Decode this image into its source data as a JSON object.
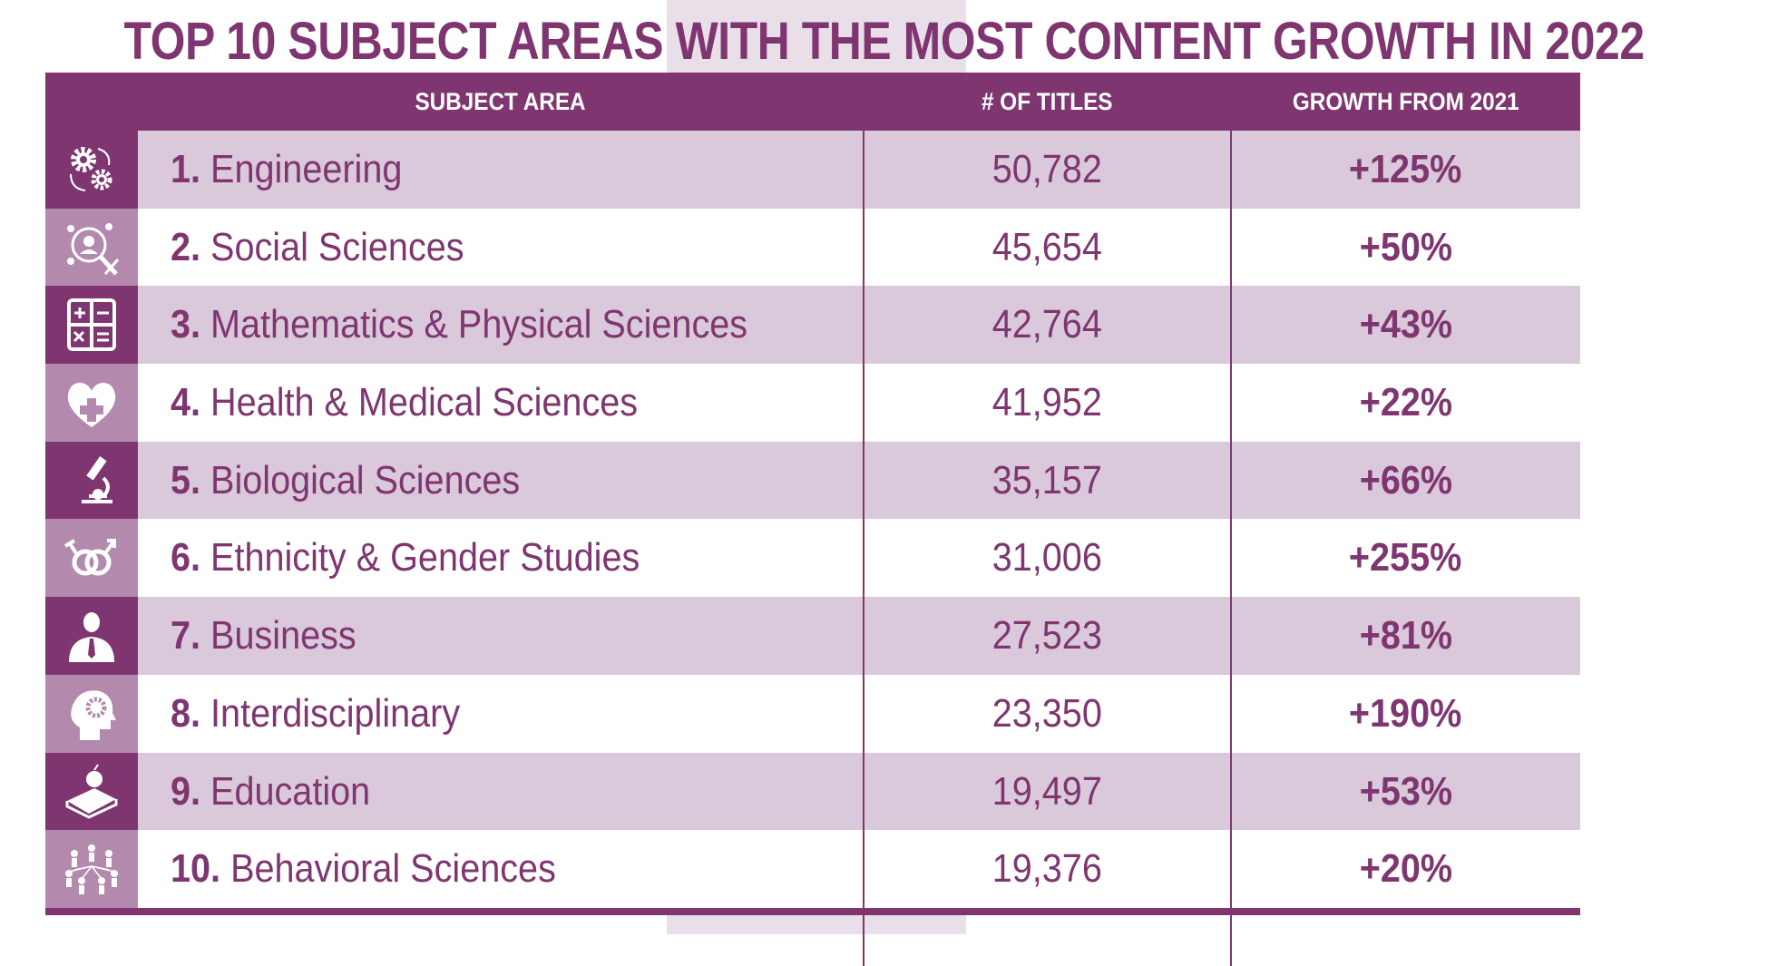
{
  "title": "TOP 10 SUBJECT AREAS WITH THE MOST CONTENT GROWTH IN 2022",
  "colors": {
    "primary": "#7f3670",
    "row_light": "#dac8db",
    "icon_light": "#b38aae"
  },
  "headers": {
    "subject": "SUBJECT AREA",
    "titles": "# OF TITLES",
    "growth": "GROWTH FROM 2021"
  },
  "rows": [
    {
      "num": "1.",
      "name": "Engineering",
      "titles": "50,782",
      "growth": "+125%",
      "icon": "gears-cycle-icon"
    },
    {
      "num": "2.",
      "name": "Social Sciences",
      "titles": "45,654",
      "growth": "+50%",
      "icon": "social-network-icon"
    },
    {
      "num": "3.",
      "name": "Mathematics & Physical Sciences",
      "titles": "42,764",
      "growth": "+43%",
      "icon": "calculator-icon"
    },
    {
      "num": "4.",
      "name": "Health & Medical Sciences",
      "titles": "41,952",
      "growth": "+22%",
      "icon": "heart-cross-icon"
    },
    {
      "num": "5.",
      "name": "Biological Sciences",
      "titles": "35,157",
      "growth": "+66%",
      "icon": "microscope-icon"
    },
    {
      "num": "6.",
      "name": "Ethnicity & Gender Studies",
      "titles": "31,006",
      "growth": "+255%",
      "icon": "gender-symbols-icon"
    },
    {
      "num": "7.",
      "name": "Business",
      "titles": "27,523",
      "growth": "+81%",
      "icon": "businessman-icon"
    },
    {
      "num": "8.",
      "name": "Interdisciplinary",
      "titles": "23,350",
      "growth": "+190%",
      "icon": "head-gear-icon"
    },
    {
      "num": "9.",
      "name": "Education",
      "titles": "19,497",
      "growth": "+53%",
      "icon": "book-apple-icon"
    },
    {
      "num": "10.",
      "name": "Behavioral Sciences",
      "titles": "19,376",
      "growth": "+20%",
      "icon": "people-network-icon"
    }
  ]
}
